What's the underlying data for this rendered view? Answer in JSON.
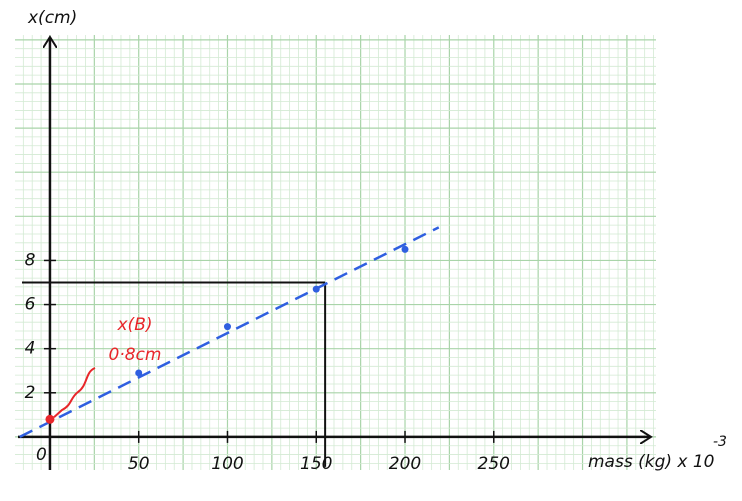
{
  "chart_data": {
    "type": "scatter",
    "y_label": "x(cm)",
    "x_label": "mass (kg) x 10",
    "x_label_exponent": "-3",
    "origin_label": "0",
    "x": [
      0,
      50,
      100,
      150,
      200
    ],
    "values": [
      0.8,
      2.9,
      5.0,
      6.7,
      8.5
    ],
    "color": "#2f5fe0",
    "highlight_color": "#e8262a",
    "fit_line": {
      "x": [
        -17,
        219
      ],
      "y": [
        0,
        9.5
      ],
      "color": "#2f5fe0",
      "dashed": true
    },
    "construction": {
      "x": 155,
      "y": 7
    },
    "annotation": {
      "lines": [
        "x(B)",
        "0·8cm"
      ],
      "color": "#e8262a"
    },
    "xlim": [
      -18,
      338
    ],
    "ylim": [
      -1.5,
      18.9
    ],
    "xticks": [
      50,
      100,
      150,
      200,
      250
    ],
    "yticks": [
      2,
      4,
      6,
      8
    ],
    "grid": true
  }
}
